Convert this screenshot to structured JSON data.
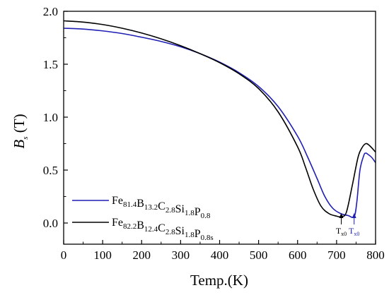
{
  "chart_data": {
    "type": "line",
    "xlabel": "Temp.(K)",
    "ylabel_main": "B",
    "ylabel_sub": "s",
    "ylabel_unit": " (T)",
    "xlim": [
      0,
      800
    ],
    "ylim": [
      -0.2,
      2.0
    ],
    "xticks": [
      0,
      100,
      200,
      300,
      400,
      500,
      600,
      700,
      800
    ],
    "xtick_labels": [
      "0",
      "100",
      "200",
      "300",
      "400",
      "500",
      "600",
      "700",
      "800"
    ],
    "yticks": [
      0.0,
      0.5,
      1.0,
      1.5,
      2.0
    ],
    "ytick_labels": [
      "0.0",
      "0.5",
      "1.0",
      "1.5",
      "2.0"
    ],
    "grid": false,
    "legend_position": "bottom-left",
    "series": [
      {
        "label_parts": [
          {
            "t": "Fe",
            "s": "81.4"
          },
          {
            "t": "B",
            "s": "13.2"
          },
          {
            "t": "C",
            "s": "2.8"
          },
          {
            "t": "Si",
            "s": "1.8"
          },
          {
            "t": "P",
            "s": "0.8"
          }
        ],
        "color": "#1f1fb4",
        "points": [
          [
            0,
            1.84
          ],
          [
            50,
            1.832
          ],
          [
            100,
            1.815
          ],
          [
            150,
            1.79
          ],
          [
            200,
            1.755
          ],
          [
            250,
            1.715
          ],
          [
            300,
            1.665
          ],
          [
            350,
            1.6
          ],
          [
            400,
            1.52
          ],
          [
            450,
            1.42
          ],
          [
            500,
            1.29
          ],
          [
            550,
            1.1
          ],
          [
            600,
            0.82
          ],
          [
            625,
            0.63
          ],
          [
            650,
            0.42
          ],
          [
            670,
            0.25
          ],
          [
            690,
            0.14
          ],
          [
            710,
            0.09
          ],
          [
            730,
            0.07
          ],
          [
            745,
            0.06
          ],
          [
            752,
            0.2
          ],
          [
            760,
            0.5
          ],
          [
            770,
            0.64
          ],
          [
            775,
            0.66
          ],
          [
            780,
            0.65
          ],
          [
            790,
            0.62
          ],
          [
            800,
            0.57
          ]
        ]
      },
      {
        "label_parts": [
          {
            "t": "Fe",
            "s": "82.2"
          },
          {
            "t": "B",
            "s": "12.4"
          },
          {
            "t": "C",
            "s": "2.8"
          },
          {
            "t": "Si",
            "s": "1.8"
          },
          {
            "t": "P",
            "s": "0.8s"
          }
        ],
        "color": "#000000",
        "points": [
          [
            0,
            1.91
          ],
          [
            50,
            1.898
          ],
          [
            100,
            1.875
          ],
          [
            150,
            1.84
          ],
          [
            200,
            1.795
          ],
          [
            250,
            1.74
          ],
          [
            300,
            1.675
          ],
          [
            350,
            1.6
          ],
          [
            400,
            1.515
          ],
          [
            450,
            1.41
          ],
          [
            500,
            1.27
          ],
          [
            550,
            1.05
          ],
          [
            600,
            0.72
          ],
          [
            620,
            0.53
          ],
          [
            640,
            0.32
          ],
          [
            660,
            0.16
          ],
          [
            680,
            0.09
          ],
          [
            700,
            0.065
          ],
          [
            712,
            0.06
          ],
          [
            725,
            0.1
          ],
          [
            740,
            0.35
          ],
          [
            755,
            0.62
          ],
          [
            765,
            0.71
          ],
          [
            775,
            0.75
          ],
          [
            785,
            0.73
          ],
          [
            800,
            0.67
          ]
        ]
      }
    ],
    "annotations": [
      {
        "main": "T",
        "sub": "x0",
        "x": 712,
        "color": "#000000"
      },
      {
        "main": "T",
        "sub": "x0",
        "x": 745,
        "color": "#1f1fb4"
      }
    ]
  }
}
